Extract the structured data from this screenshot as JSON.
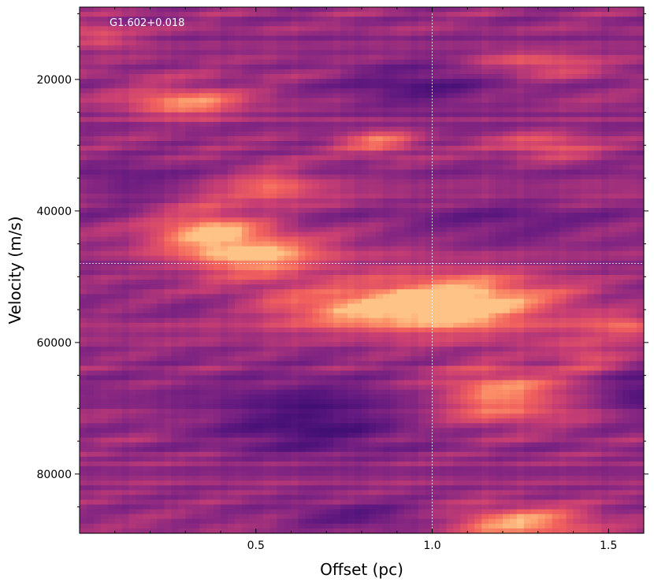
{
  "chart_data": {
    "type": "heatmap",
    "title": "",
    "annotation": "G1.602+0.018",
    "xlabel": "Offset (pc)",
    "ylabel": "Velocity (m/s)",
    "xlim": [
      0.0,
      1.6
    ],
    "ylim": [
      9000,
      89000
    ],
    "y_inverted": true,
    "x_ticks": [
      0.5,
      1.0,
      1.5
    ],
    "x_tick_labels": [
      "0.5",
      "1.0",
      "1.5"
    ],
    "y_ticks": [
      20000,
      40000,
      60000,
      80000
    ],
    "y_tick_labels": [
      "20000",
      "40000",
      "60000",
      "80000"
    ],
    "crosshair": {
      "x": 1.0,
      "y": 48000
    },
    "colormap": "magma",
    "grid": false,
    "bright_features": [
      {
        "x": 0.3,
        "y": 23500,
        "strength": 0.75,
        "sx": 0.12,
        "sy": 1800
      },
      {
        "x": 0.85,
        "y": 29500,
        "strength": 0.6,
        "sx": 0.08,
        "sy": 1500
      },
      {
        "x": 1.32,
        "y": 30000,
        "strength": 0.55,
        "sx": 0.1,
        "sy": 1500
      },
      {
        "x": 0.55,
        "y": 36000,
        "strength": 0.55,
        "sx": 0.1,
        "sy": 2000
      },
      {
        "x": 0.35,
        "y": 42500,
        "strength": 0.8,
        "sx": 0.12,
        "sy": 2500
      },
      {
        "x": 0.5,
        "y": 47000,
        "strength": 0.9,
        "sx": 0.15,
        "sy": 2500
      },
      {
        "x": 0.75,
        "y": 55000,
        "strength": 0.75,
        "sx": 0.3,
        "sy": 2000
      },
      {
        "x": 1.08,
        "y": 53500,
        "strength": 0.95,
        "sx": 0.22,
        "sy": 3500
      },
      {
        "x": 1.2,
        "y": 68000,
        "strength": 0.9,
        "sx": 0.14,
        "sy": 3000
      },
      {
        "x": 1.25,
        "y": 87500,
        "strength": 0.85,
        "sx": 0.15,
        "sy": 2000
      },
      {
        "x": 0.05,
        "y": 13500,
        "strength": 0.5,
        "sx": 0.08,
        "sy": 1200
      },
      {
        "x": 1.3,
        "y": 17500,
        "strength": 0.55,
        "sx": 0.12,
        "sy": 1200
      },
      {
        "x": 1.55,
        "y": 57500,
        "strength": 0.5,
        "sx": 0.08,
        "sy": 1500
      },
      {
        "x": 1.45,
        "y": 62000,
        "strength": 0.45,
        "sx": 0.08,
        "sy": 1500
      }
    ],
    "dark_features": [
      {
        "x": 0.95,
        "y": 21000,
        "strength": 0.7,
        "sx": 0.15,
        "sy": 2500
      },
      {
        "x": 0.15,
        "y": 36500,
        "strength": 0.5,
        "sx": 0.1,
        "sy": 2500
      },
      {
        "x": 0.65,
        "y": 72000,
        "strength": 0.9,
        "sx": 0.18,
        "sy": 3500
      },
      {
        "x": 1.58,
        "y": 67500,
        "strength": 0.6,
        "sx": 0.06,
        "sy": 2500
      },
      {
        "x": 0.8,
        "y": 86500,
        "strength": 0.6,
        "sx": 0.15,
        "sy": 1500
      },
      {
        "x": 0.4,
        "y": 55000,
        "strength": 0.4,
        "sx": 0.15,
        "sy": 1500
      },
      {
        "x": 1.2,
        "y": 42000,
        "strength": 0.35,
        "sx": 0.2,
        "sy": 3000
      }
    ]
  }
}
